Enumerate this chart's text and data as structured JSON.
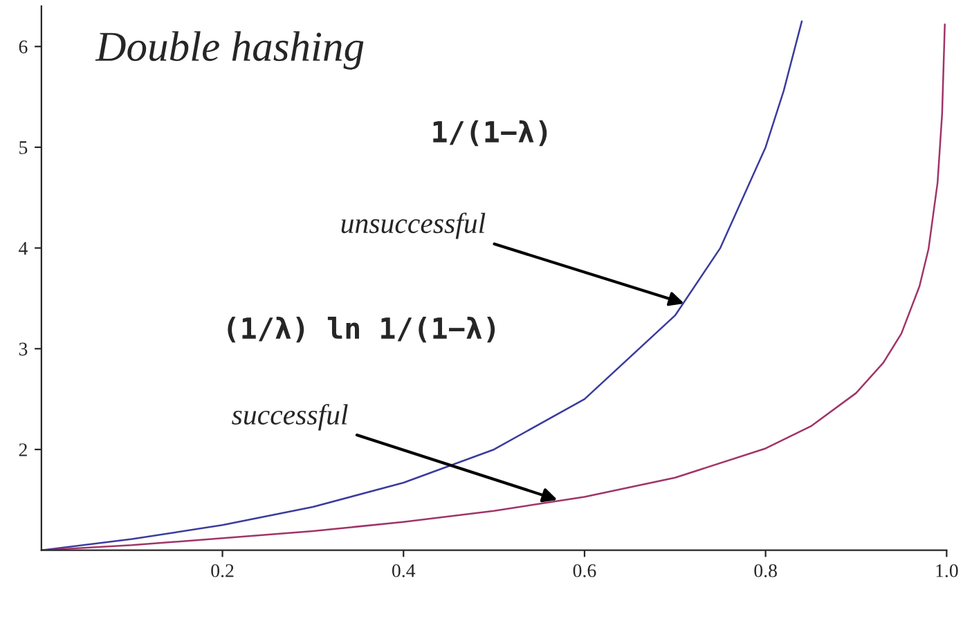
{
  "chart_data": {
    "type": "line",
    "title": "Double hashing",
    "xlim": [
      0,
      1.0
    ],
    "ylim": [
      1,
      6.4
    ],
    "xticks": [
      0.2,
      0.4,
      0.6,
      0.8,
      {
        "value": 1.0,
        "label": "1.0"
      }
    ],
    "yticks": [
      2,
      3,
      4,
      5,
      6
    ],
    "grid": false,
    "legend": false,
    "series": [
      {
        "color": "#3b3b9e",
        "x": [
          0,
          0.1,
          0.2,
          0.3,
          0.4,
          0.5,
          0.6,
          0.7,
          0.75,
          0.8,
          0.82,
          0.84
        ],
        "values": [
          1,
          1.11,
          1.25,
          1.43,
          1.67,
          2,
          2.5,
          3.33,
          4,
          5,
          5.56,
          6.25
        ]
      },
      {
        "color": "#a03468",
        "x": [
          0,
          0.1,
          0.2,
          0.3,
          0.4,
          0.5,
          0.6,
          0.7,
          0.8,
          0.85,
          0.9,
          0.93,
          0.95,
          0.97,
          0.98,
          0.99,
          0.995,
          0.998
        ],
        "values": [
          1,
          1.05,
          1.12,
          1.19,
          1.28,
          1.39,
          1.53,
          1.72,
          2.01,
          2.23,
          2.56,
          2.86,
          3.15,
          3.62,
          3.99,
          4.65,
          5.33,
          6.22
        ]
      }
    ],
    "annotations": [
      "1/(1−λ)",
      {
        "text": "unsuccessful",
        "x": 0.71,
        "y": 3.45
      },
      "(1/λ) ln 1/(1−λ)",
      {
        "text": "successful",
        "x": 0.57,
        "y": 1.5
      }
    ]
  }
}
